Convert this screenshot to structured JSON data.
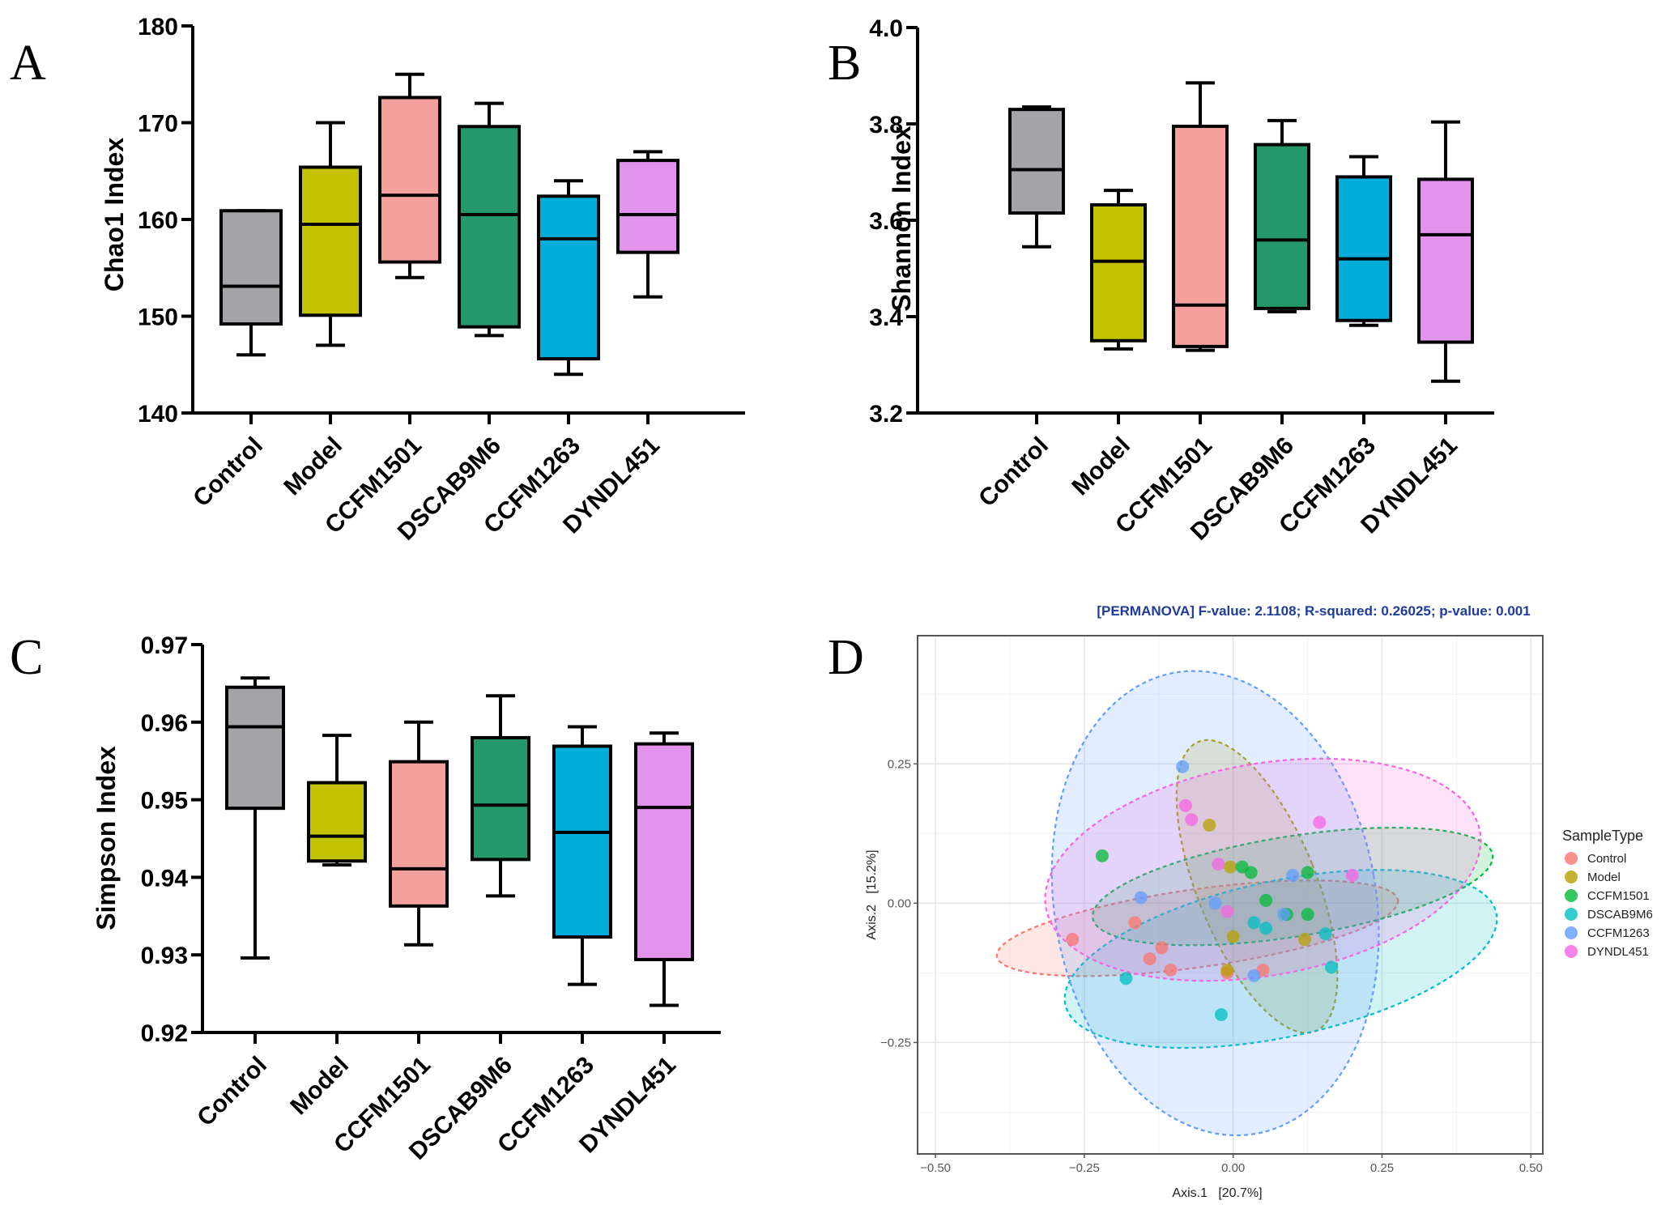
{
  "panel_labels": [
    "A",
    "B",
    "C",
    "D"
  ],
  "chart_data": [
    {
      "type": "box",
      "panel": "A",
      "title": "",
      "xlabel": "",
      "ylabel": "Chao1 Index",
      "ylim": [
        140,
        180
      ],
      "yticks": [
        140,
        150,
        160,
        170,
        180
      ],
      "ytick_labels": [
        "140",
        "150",
        "160",
        "170",
        "180"
      ],
      "categories": [
        "Control",
        "Model",
        "CCFM1501",
        "DSCAB9M6",
        "CCFM1263",
        "DYNDL451"
      ],
      "colors": [
        "#a3a3a8",
        "#c2c200",
        "#f4a09c",
        "#25986b",
        "#00aed9",
        "#e294ec"
      ],
      "boxes": [
        {
          "min": 146,
          "q1": 149.2,
          "median": 153.1,
          "q3": 160.9,
          "max": 160.9
        },
        {
          "min": 147,
          "q1": 150.1,
          "median": 159.5,
          "q3": 165.4,
          "max": 170
        },
        {
          "min": 154,
          "q1": 155.6,
          "median": 162.5,
          "q3": 172.6,
          "max": 175
        },
        {
          "min": 148,
          "q1": 148.9,
          "median": 160.5,
          "q3": 169.6,
          "max": 172
        },
        {
          "min": 144,
          "q1": 145.6,
          "median": 158,
          "q3": 162.4,
          "max": 164
        },
        {
          "min": 152,
          "q1": 156.6,
          "median": 160.5,
          "q3": 166.1,
          "max": 167
        }
      ]
    },
    {
      "type": "box",
      "panel": "B",
      "title": "",
      "xlabel": "",
      "ylabel": "Shannon Index",
      "ylim": [
        3.2,
        4.0
      ],
      "yticks": [
        3.2,
        3.4,
        3.6,
        3.8,
        4.0
      ],
      "ytick_labels": [
        "3.2",
        "3.4",
        "3.6",
        "3.8",
        "4.0"
      ],
      "categories": [
        "Control",
        "Model",
        "CCFM1501",
        "DSCAB9M6",
        "CCFM1263",
        "DYNDL451"
      ],
      "colors": [
        "#a3a3a8",
        "#c2c200",
        "#f4a09c",
        "#25986b",
        "#00aed9",
        "#e294ec"
      ],
      "boxes": [
        {
          "min": 3.545,
          "q1": 3.615,
          "median": 3.705,
          "q3": 3.83,
          "max": 3.835
        },
        {
          "min": 3.333,
          "q1": 3.35,
          "median": 3.515,
          "q3": 3.632,
          "max": 3.662
        },
        {
          "min": 3.33,
          "q1": 3.338,
          "median": 3.424,
          "q3": 3.795,
          "max": 3.885
        },
        {
          "min": 3.41,
          "q1": 3.417,
          "median": 3.559,
          "q3": 3.757,
          "max": 3.807
        },
        {
          "min": 3.382,
          "q1": 3.392,
          "median": 3.52,
          "q3": 3.69,
          "max": 3.732
        },
        {
          "min": 3.266,
          "q1": 3.347,
          "median": 3.57,
          "q3": 3.685,
          "max": 3.804
        }
      ]
    },
    {
      "type": "box",
      "panel": "C",
      "title": "",
      "xlabel": "",
      "ylabel": "Simpson Index",
      "ylim": [
        0.92,
        0.97
      ],
      "yticks": [
        0.92,
        0.93,
        0.94,
        0.95,
        0.96,
        0.97
      ],
      "ytick_labels": [
        "0.92",
        "0.93",
        "0.94",
        "0.95",
        "0.96",
        "0.97"
      ],
      "categories": [
        "Control",
        "Model",
        "CCFM1501",
        "DSCAB9M6",
        "CCFM1263",
        "DYNDL451"
      ],
      "colors": [
        "#a3a3a8",
        "#c2c200",
        "#f4a09c",
        "#25986b",
        "#00aed9",
        "#e294ec"
      ],
      "boxes": [
        {
          "min": 0.9296,
          "q1": 0.9489,
          "median": 0.9594,
          "q3": 0.9645,
          "max": 0.9657
        },
        {
          "min": 0.9416,
          "q1": 0.9421,
          "median": 0.9453,
          "q3": 0.9522,
          "max": 0.9583
        },
        {
          "min": 0.9313,
          "q1": 0.9363,
          "median": 0.9411,
          "q3": 0.9549,
          "max": 0.96
        },
        {
          "min": 0.9376,
          "q1": 0.9423,
          "median": 0.9493,
          "q3": 0.958,
          "max": 0.9634
        },
        {
          "min": 0.9262,
          "q1": 0.9323,
          "median": 0.9458,
          "q3": 0.9569,
          "max": 0.9594
        },
        {
          "min": 0.9235,
          "q1": 0.9294,
          "median": 0.949,
          "q3": 0.9572,
          "max": 0.9586
        }
      ]
    },
    {
      "type": "scatter",
      "panel": "D",
      "title": "[PERMANOVA] F-value: 2.1108; R-squared: 0.26025; p-value: 0.001",
      "xlabel": "Axis.1   [20.7%]",
      "ylabel": "Axis.2   [15.2%]",
      "xlim": [
        -0.53,
        0.52
      ],
      "ylim": [
        -0.45,
        0.48
      ],
      "xticks": [
        -0.5,
        -0.25,
        0.0,
        0.25,
        0.5
      ],
      "xtick_labels": [
        "-0.50",
        "-0.25",
        "0.00",
        "0.25",
        "0.50"
      ],
      "yticks": [
        -0.25,
        0.0,
        0.25
      ],
      "ytick_labels": [
        "-0.25",
        "0.00",
        "0.25"
      ],
      "grid": true,
      "legend_title": "SampleType",
      "legend_position": "right",
      "series": [
        {
          "name": "Control",
          "color": "#f8766d",
          "points": [
            [
              -0.27,
              -0.065
            ],
            [
              -0.165,
              -0.035
            ],
            [
              -0.12,
              -0.08
            ],
            [
              -0.14,
              -0.1
            ],
            [
              -0.105,
              -0.12
            ],
            [
              -0.01,
              -0.125
            ],
            [
              0.05,
              -0.12
            ]
          ],
          "ellipse": {
            "cx": -0.06,
            "cy": -0.045,
            "rx": 0.34,
            "ry": 0.07,
            "angle": -8
          }
        },
        {
          "name": "Model",
          "color": "#b79f00",
          "points": [
            [
              -0.04,
              0.14
            ],
            [
              -0.005,
              0.065
            ],
            [
              0.0,
              -0.06
            ],
            [
              0.12,
              -0.065
            ],
            [
              -0.01,
              -0.12
            ]
          ],
          "ellipse": {
            "cx": 0.04,
            "cy": 0.03,
            "rx": 0.1,
            "ry": 0.28,
            "angle": -22
          }
        },
        {
          "name": "CCFM1501",
          "color": "#00ba38",
          "points": [
            [
              -0.22,
              0.085
            ],
            [
              0.015,
              0.065
            ],
            [
              0.03,
              0.055
            ],
            [
              0.125,
              0.055
            ],
            [
              0.055,
              0.005
            ],
            [
              0.125,
              -0.02
            ],
            [
              0.09,
              -0.02
            ]
          ],
          "ellipse": {
            "cx": 0.1,
            "cy": 0.03,
            "rx": 0.34,
            "ry": 0.09,
            "angle": -9
          }
        },
        {
          "name": "DSCAB9M6",
          "color": "#00bfc4",
          "points": [
            [
              -0.18,
              -0.135
            ],
            [
              -0.02,
              -0.2
            ],
            [
              0.035,
              -0.035
            ],
            [
              0.055,
              -0.045
            ],
            [
              0.155,
              -0.055
            ],
            [
              0.165,
              -0.115
            ]
          ],
          "ellipse": {
            "cx": 0.08,
            "cy": -0.1,
            "rx": 0.37,
            "ry": 0.14,
            "angle": -12
          }
        },
        {
          "name": "CCFM1263",
          "color": "#619cff",
          "points": [
            [
              -0.085,
              0.245
            ],
            [
              -0.155,
              0.01
            ],
            [
              -0.03,
              0.0
            ],
            [
              0.1,
              0.05
            ],
            [
              0.085,
              -0.02
            ],
            [
              0.035,
              -0.13
            ]
          ],
          "ellipse": {
            "cx": -0.03,
            "cy": 0.0,
            "rx": 0.27,
            "ry": 0.42,
            "angle": -10
          }
        },
        {
          "name": "DYNDL451",
          "color": "#f564e3",
          "points": [
            [
              -0.08,
              0.175
            ],
            [
              -0.07,
              0.15
            ],
            [
              0.145,
              0.145
            ],
            [
              0.2,
              0.05
            ],
            [
              -0.025,
              0.07
            ],
            [
              -0.01,
              -0.015
            ]
          ],
          "ellipse": {
            "cx": 0.05,
            "cy": 0.06,
            "rx": 0.37,
            "ry": 0.19,
            "angle": -10
          }
        }
      ]
    }
  ]
}
